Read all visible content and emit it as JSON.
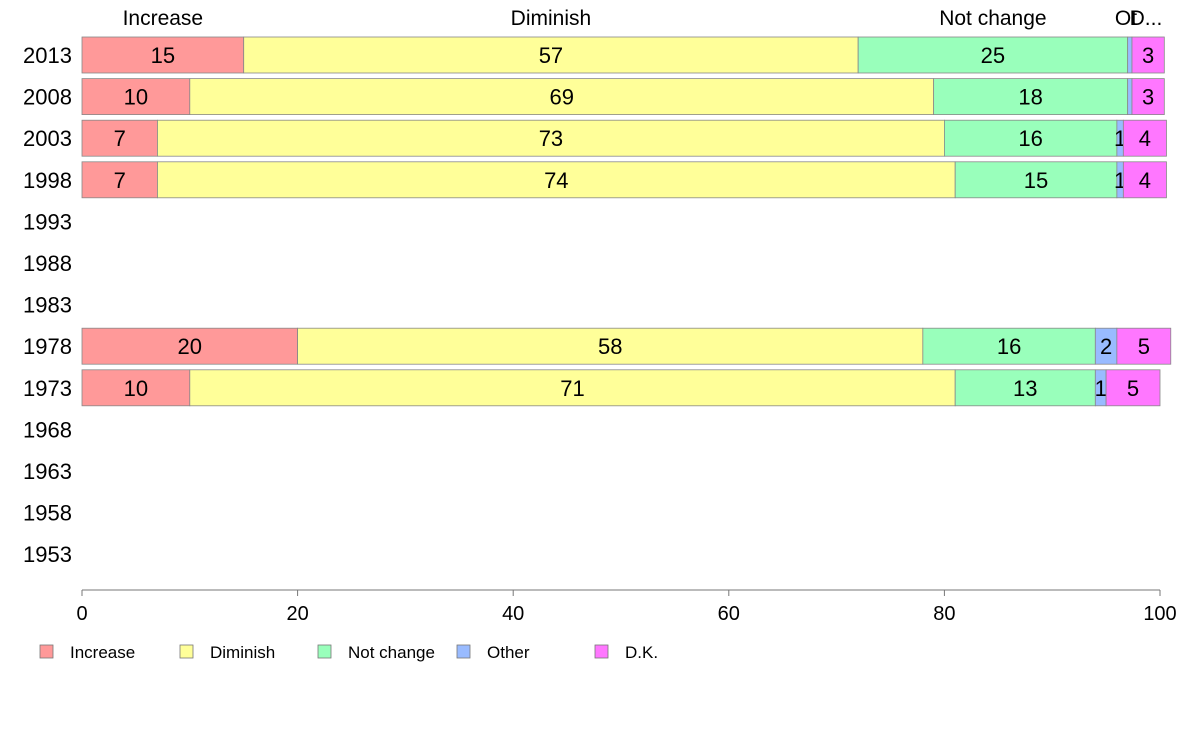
{
  "chart_data": {
    "type": "bar",
    "orientation": "horizontal",
    "stacked": true,
    "categories": [
      "2013",
      "2008",
      "2003",
      "1998",
      "1993",
      "1988",
      "1983",
      "1978",
      "1973",
      "1968",
      "1963",
      "1958",
      "1953"
    ],
    "series": [
      {
        "name": "Increase",
        "color": "#ff9999",
        "values": [
          15,
          10,
          7,
          7,
          null,
          null,
          null,
          20,
          10,
          null,
          null,
          null,
          null
        ]
      },
      {
        "name": "Diminish",
        "color": "#ffff99",
        "values": [
          57,
          69,
          73,
          74,
          null,
          null,
          null,
          58,
          71,
          null,
          null,
          null,
          null
        ]
      },
      {
        "name": "Not change",
        "color": "#99ffbb",
        "values": [
          25,
          18,
          16,
          15,
          null,
          null,
          null,
          16,
          13,
          null,
          null,
          null,
          null
        ]
      },
      {
        "name": "Other",
        "color": "#99bbff",
        "values": [
          0.4,
          0.4,
          0.6,
          0.6,
          null,
          null,
          null,
          2,
          1,
          null,
          null,
          null,
          null
        ]
      },
      {
        "name": "D.K.",
        "color": "#ff77ff",
        "values": [
          3,
          3,
          4,
          4,
          null,
          null,
          null,
          5,
          5,
          null,
          null,
          null,
          null
        ]
      }
    ],
    "data_labels": [
      [
        "15",
        "57",
        "25",
        "",
        "3"
      ],
      [
        "10",
        "69",
        "18",
        "",
        "3"
      ],
      [
        "7",
        "73",
        "16",
        "1",
        "4"
      ],
      [
        "7",
        "74",
        "15",
        "1",
        "4"
      ],
      null,
      null,
      null,
      [
        "20",
        "58",
        "16",
        "2",
        "5"
      ],
      [
        "10",
        "71",
        "13",
        "1",
        "5"
      ],
      null,
      null,
      null,
      null
    ],
    "top_labels": [
      "Increase",
      "Diminish",
      "Not change",
      "Ot",
      "D..."
    ],
    "xlim": [
      0,
      100
    ],
    "xticks": [
      0,
      20,
      40,
      60,
      80,
      100
    ],
    "title": "",
    "xlabel": "",
    "ylabel": "",
    "grid": false,
    "legend_position": "bottom"
  }
}
